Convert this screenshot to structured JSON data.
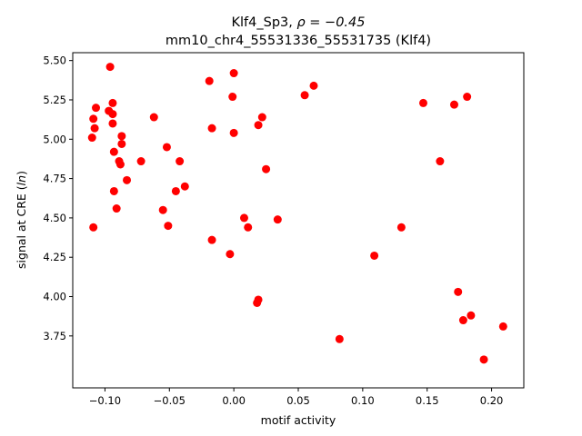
{
  "chart_data": {
    "type": "scatter",
    "title_line1": "Klf4_Sp3, ",
    "title_rho": "ρ = −0.45",
    "title_line2": "mm10_chr4_55531336_55531735 (Klf4)",
    "xlabel": "motif activity",
    "ylabel_main": "signal at CRE (",
    "ylabel_italic": "ln",
    "ylabel_end": ")",
    "xlim": [
      -0.125,
      0.225
    ],
    "ylim": [
      3.42,
      5.55
    ],
    "xticks": [
      -0.1,
      -0.05,
      0.0,
      0.05,
      0.1,
      0.15,
      0.2
    ],
    "xtick_labels": [
      "−0.10",
      "−0.05",
      "0.00",
      "0.05",
      "0.10",
      "0.15",
      "0.20"
    ],
    "yticks": [
      3.75,
      4.0,
      4.25,
      4.5,
      4.75,
      5.0,
      5.25,
      5.5
    ],
    "ytick_labels": [
      "3.75",
      "4.00",
      "4.25",
      "4.50",
      "4.75",
      "5.00",
      "5.25",
      "5.50"
    ],
    "grid": false,
    "marker_color": "#ff0000",
    "points": [
      {
        "x": -0.096,
        "y": 5.46
      },
      {
        "x": -0.094,
        "y": 5.23
      },
      {
        "x": -0.107,
        "y": 5.2
      },
      {
        "x": -0.097,
        "y": 5.18
      },
      {
        "x": -0.094,
        "y": 5.16
      },
      {
        "x": -0.109,
        "y": 5.13
      },
      {
        "x": -0.094,
        "y": 5.1
      },
      {
        "x": -0.108,
        "y": 5.07
      },
      {
        "x": -0.11,
        "y": 5.01
      },
      {
        "x": -0.087,
        "y": 5.02
      },
      {
        "x": -0.087,
        "y": 4.97
      },
      {
        "x": -0.093,
        "y": 4.92
      },
      {
        "x": -0.089,
        "y": 4.86
      },
      {
        "x": -0.088,
        "y": 4.84
      },
      {
        "x": -0.072,
        "y": 4.86
      },
      {
        "x": -0.083,
        "y": 4.74
      },
      {
        "x": -0.093,
        "y": 4.67
      },
      {
        "x": -0.091,
        "y": 4.56
      },
      {
        "x": -0.109,
        "y": 4.44
      },
      {
        "x": -0.062,
        "y": 5.14
      },
      {
        "x": -0.052,
        "y": 4.95
      },
      {
        "x": -0.042,
        "y": 4.86
      },
      {
        "x": -0.038,
        "y": 4.7
      },
      {
        "x": -0.045,
        "y": 4.67
      },
      {
        "x": -0.055,
        "y": 4.55
      },
      {
        "x": -0.051,
        "y": 4.45
      },
      {
        "x": -0.019,
        "y": 5.37
      },
      {
        "x": 0.0,
        "y": 5.42
      },
      {
        "x": -0.001,
        "y": 5.27
      },
      {
        "x": -0.017,
        "y": 5.07
      },
      {
        "x": 0.0,
        "y": 5.04
      },
      {
        "x": 0.022,
        "y": 5.14
      },
      {
        "x": 0.019,
        "y": 5.09
      },
      {
        "x": 0.025,
        "y": 4.81
      },
      {
        "x": 0.008,
        "y": 4.5
      },
      {
        "x": 0.011,
        "y": 4.44
      },
      {
        "x": 0.034,
        "y": 4.49
      },
      {
        "x": -0.017,
        "y": 4.36
      },
      {
        "x": -0.003,
        "y": 4.27
      },
      {
        "x": 0.019,
        "y": 3.98
      },
      {
        "x": 0.018,
        "y": 3.96
      },
      {
        "x": 0.055,
        "y": 5.28
      },
      {
        "x": 0.062,
        "y": 5.34
      },
      {
        "x": 0.082,
        "y": 3.73
      },
      {
        "x": 0.109,
        "y": 4.26
      },
      {
        "x": 0.13,
        "y": 4.44
      },
      {
        "x": 0.147,
        "y": 5.23
      },
      {
        "x": 0.171,
        "y": 5.22
      },
      {
        "x": 0.181,
        "y": 5.27
      },
      {
        "x": 0.16,
        "y": 4.86
      },
      {
        "x": 0.174,
        "y": 4.03
      },
      {
        "x": 0.184,
        "y": 3.88
      },
      {
        "x": 0.178,
        "y": 3.85
      },
      {
        "x": 0.209,
        "y": 3.81
      },
      {
        "x": 0.194,
        "y": 3.6
      }
    ]
  }
}
